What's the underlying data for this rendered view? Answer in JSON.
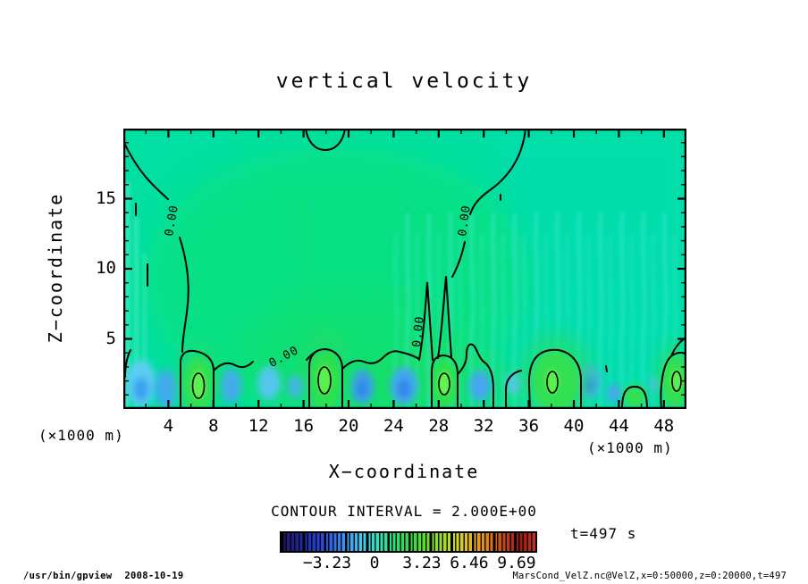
{
  "header": {
    "title": "vertical velocity"
  },
  "chart_data": {
    "type": "heatmap",
    "title": "vertical velocity",
    "xlabel": "X−coordinate",
    "ylabel": "Z−coordinate",
    "x_axis_unit": "(×1000 m)",
    "z_axis_unit": "(×1000 m)",
    "x_range": [
      0,
      50
    ],
    "z_range": [
      0,
      20
    ],
    "x_major_ticks": [
      4,
      8,
      12,
      16,
      20,
      24,
      28,
      32,
      36,
      40,
      44,
      48
    ],
    "x_minor_tick_step": 2,
    "z_major_ticks": [
      5,
      10,
      15
    ],
    "z_minor_tick_step": 1,
    "contour_interval_label": "CONTOUR INTERVAL = 2.000E+00",
    "contour_interval_value": 2.0,
    "zero_contour_label": "0.00",
    "contour_labels": [
      {
        "x": 4.6,
        "z": 13.4,
        "angle": -80
      },
      {
        "x": 14.4,
        "z": 3.5,
        "angle": -28
      },
      {
        "x": 26.5,
        "z": 5.5,
        "angle": -84
      },
      {
        "x": 30.6,
        "z": 13.4,
        "angle": -82
      }
    ],
    "updraft_cores_x_approx": [
      6.7,
      17.9,
      28.5,
      38.4,
      45.4,
      49.0
    ],
    "downdraft_cores_x_approx": [
      1.6,
      4.0,
      9.5,
      12.9,
      15.2,
      21.2,
      24.9,
      31.7,
      34.7,
      41.3,
      43.5
    ],
    "colorbar": {
      "min": -6.46,
      "max": 10.85,
      "tick_values": [
        -3.23,
        0,
        3.23,
        6.46,
        9.69
      ],
      "tick_labels": [
        "−3.23",
        "0",
        "3.23",
        "6.46",
        "9.69"
      ],
      "gradient_colors": [
        "#2a1468",
        "#1c2490",
        "#2238c8",
        "#2b5ce4",
        "#3f93f0",
        "#41c4ec",
        "#36e0c0",
        "#2ce07c",
        "#2eda48",
        "#5cdc32",
        "#9ade2a",
        "#ccd826",
        "#e4b322",
        "#e08018",
        "#c44812",
        "#9a1c0a",
        "#c03028"
      ]
    },
    "time_label": "t=497 s"
  },
  "footer": {
    "left_program": "/usr/bin/gpview",
    "left_date": "2008-10-19",
    "right_info": "MarsCond_VelZ.nc@VelZ,x=0:50000,z=0:20000,t=497"
  }
}
